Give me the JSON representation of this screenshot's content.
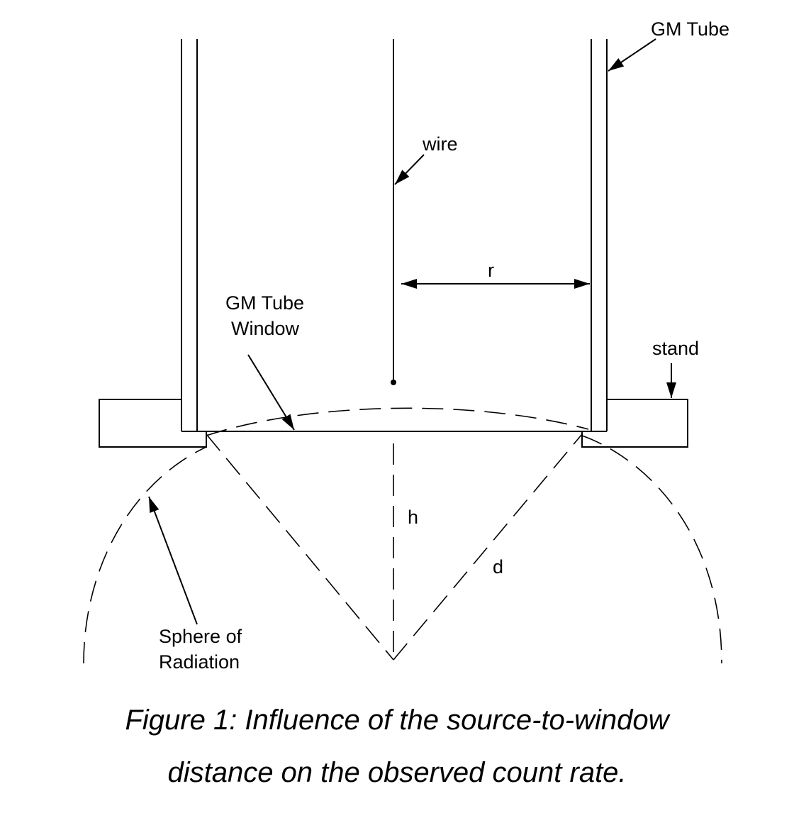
{
  "labels": {
    "gm_tube": "GM Tube",
    "wire": "wire",
    "radius": "r",
    "window_line1": "GM Tube",
    "window_line2": "Window",
    "stand": "stand",
    "height": "h",
    "distance": "d",
    "sphere_line1": "Sphere of",
    "sphere_line2": "Radiation"
  },
  "caption": {
    "line1": "Figure 1: Influence of the source-to-window",
    "line2": "distance on the observed count rate."
  },
  "colors": {
    "ink": "#000000",
    "background": "#ffffff"
  }
}
